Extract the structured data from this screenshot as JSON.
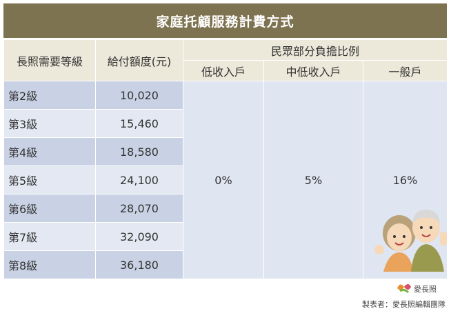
{
  "title": "家庭托顧服務計費方式",
  "table": {
    "headers": {
      "level": "長照需要等級",
      "amount": "給付額度(元)",
      "share": "民眾部分負擔比例",
      "low": "低收入戶",
      "midlow": "中低收入戶",
      "general": "一般戶"
    },
    "rows": [
      [
        "第2級",
        "10,020"
      ],
      [
        "第3級",
        "15,460"
      ],
      [
        "第4級",
        "18,580"
      ],
      [
        "第5級",
        "24,100"
      ],
      [
        "第6級",
        "28,070"
      ],
      [
        "第7級",
        "32,090"
      ],
      [
        "第8級",
        "36,180"
      ]
    ],
    "rates": [
      "0%",
      "5%",
      "16%"
    ]
  },
  "footer": {
    "brand": "愛長照",
    "credit": "製表者：愛長照編輯團隊"
  }
}
